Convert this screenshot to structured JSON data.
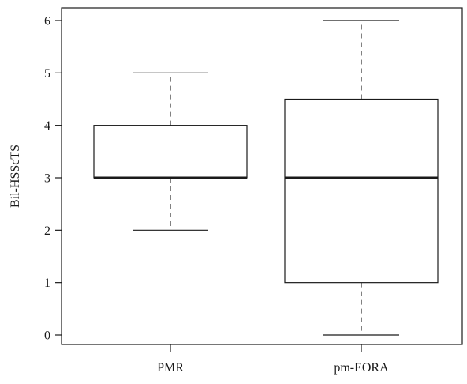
{
  "chart_data": {
    "type": "box",
    "ylabel": "Bil-HSScTS",
    "xlabel": "",
    "ylim": [
      -0.15,
      6.3
    ],
    "yticks": [
      "0",
      "1",
      "2",
      "3",
      "4",
      "5",
      "6"
    ],
    "categories": [
      "PMR",
      "pm-EORA"
    ],
    "boxes": [
      {
        "category": "PMR",
        "min": 2,
        "q1": 3,
        "median": 3,
        "q3": 4,
        "max": 5
      },
      {
        "category": "pm-EORA",
        "min": 0,
        "q1": 1,
        "median": 3,
        "q3": 4.5,
        "max": 6
      }
    ],
    "colors": {
      "stroke": "#1a1a1a",
      "fill": "#ffffff"
    }
  }
}
